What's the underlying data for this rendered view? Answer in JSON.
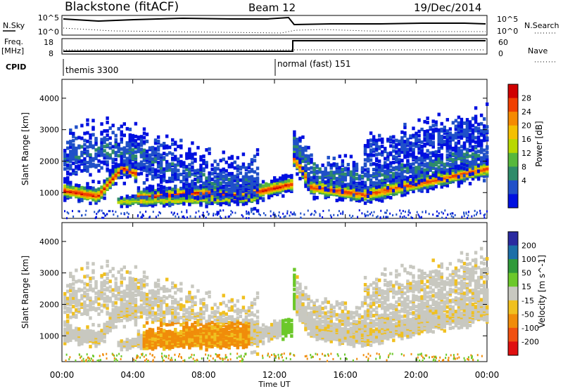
{
  "header": {
    "station": "Blackstone (fitACF)",
    "beam": "Beam 12",
    "date": "19/Dec/2014"
  },
  "summary_panel": {
    "left_labels": {
      "nsky": "N.Sky",
      "freq": "Freq.",
      "freq_unit": "[MHz]",
      "cpid": "CPID"
    },
    "right_labels": {
      "nsearch": "N.Search",
      "nave": "Nave"
    },
    "nsky_ticks": [
      "10^5",
      "10^0"
    ],
    "nsearch_ticks": [
      "10^5",
      "10^0"
    ],
    "freq_ticks": [
      "18",
      "8"
    ],
    "nave_ticks": [
      "60",
      "0"
    ],
    "cpid_entries": [
      {
        "label": "themis 3300",
        "start_hour": 0
      },
      {
        "label": "normal (fast) 151",
        "start_hour": 12
      }
    ],
    "freq_step": {
      "before_hour": 13,
      "level": "low",
      "after": "high"
    }
  },
  "chart_data": [
    {
      "type": "heatmap",
      "title": "",
      "quantity": "Power",
      "colorbar_label": "Power [dB]",
      "colorbar_ticks": [
        "28",
        "24",
        "20",
        "16",
        "12",
        "8",
        "4"
      ],
      "colors": [
        "#d00000",
        "#f04000",
        "#f58a00",
        "#f4c000",
        "#b8d800",
        "#57b83c",
        "#2e8b6a",
        "#2050c8",
        "#0010e0"
      ],
      "ylabel": "Slant Range [km]",
      "y_ticks": [
        "4000",
        "3000",
        "2000",
        "1000"
      ],
      "ylim": [
        180,
        4600
      ],
      "xlim": [
        0,
        24
      ]
    },
    {
      "type": "heatmap",
      "title": "",
      "quantity": "Velocity",
      "colorbar_label": "Velocity [m s^-1]",
      "colorbar_ticks": [
        "200",
        "100",
        "50",
        "15",
        "-15",
        "-50",
        "-100",
        "-200"
      ],
      "colors": [
        "#2a2aa0",
        "#1c6fa8",
        "#2f9a3a",
        "#6cc82a",
        "#c8c8c0",
        "#f0c020",
        "#f08c0a",
        "#f05010",
        "#e01010"
      ],
      "ylabel": "Slant Range [km]",
      "y_ticks": [
        "4000",
        "3000",
        "2000",
        "1000"
      ],
      "ylim": [
        180,
        4600
      ],
      "xlim": [
        0,
        24
      ]
    }
  ],
  "time_axis": {
    "ticks": [
      "00:00",
      "04:00",
      "08:00",
      "12:00",
      "16:00",
      "20:00",
      "00:00"
    ],
    "label": "Time UT"
  }
}
